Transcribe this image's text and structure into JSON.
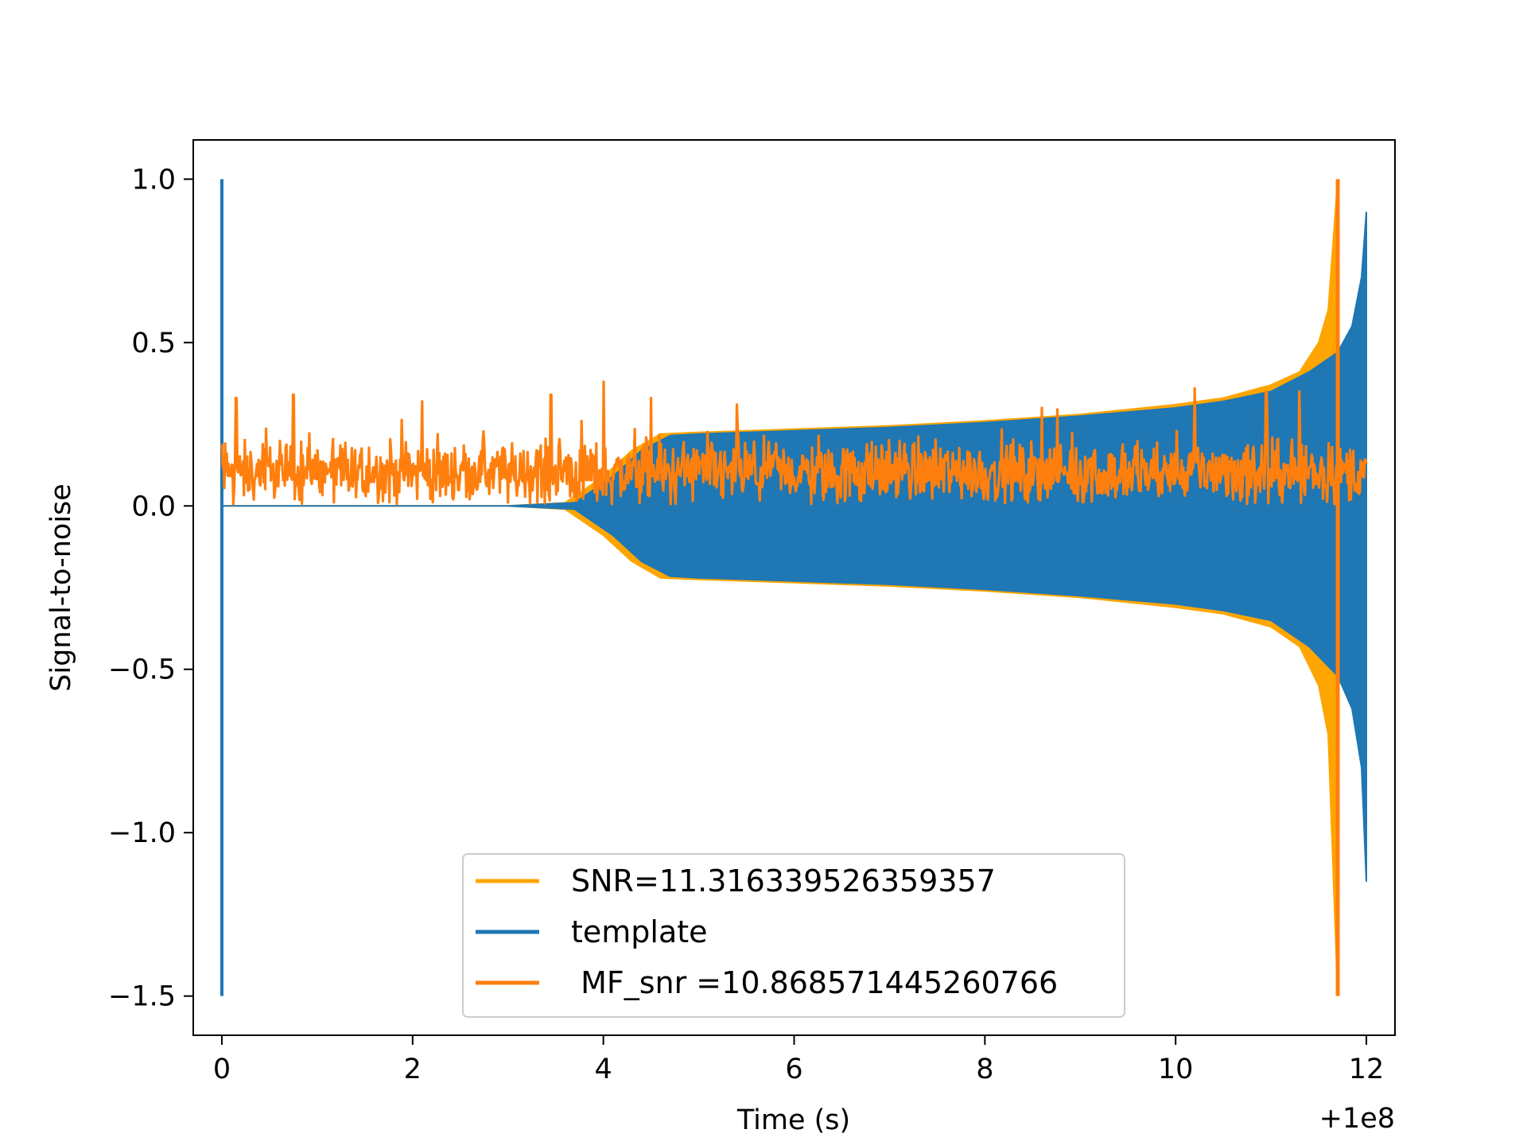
{
  "chart_data": {
    "type": "line",
    "title": "",
    "xlabel": "Time (s)",
    "ylabel": "Signal-to-noise",
    "x_offset_label": "+1e8",
    "xlim": [
      -0.3,
      12.3
    ],
    "ylim": [
      -1.62,
      1.12
    ],
    "x_ticks": [
      0,
      2,
      4,
      6,
      8,
      10,
      12
    ],
    "x_tick_labels": [
      "0",
      "2",
      "4",
      "6",
      "8",
      "10",
      "12"
    ],
    "y_ticks": [
      1.0,
      0.5,
      0.0,
      -0.5,
      -1.0,
      -1.5
    ],
    "y_tick_labels": [
      "1.0",
      "0.5",
      "0.0",
      "−0.5",
      "−1.0",
      "−1.5"
    ],
    "grid": false,
    "legend_position": "lower-center",
    "series": [
      {
        "name": "SNR=11.316339526359357",
        "color": "#ffa500",
        "kind": "envelope",
        "x": [
          0,
          3.0,
          3.6,
          4.0,
          4.3,
          4.6,
          5.0,
          6.0,
          7.0,
          8.0,
          9.0,
          10.0,
          10.5,
          11.0,
          11.3,
          11.5,
          11.6,
          11.7
        ],
        "upper": [
          0,
          0,
          0.01,
          0.09,
          0.17,
          0.22,
          0.225,
          0.235,
          0.245,
          0.26,
          0.28,
          0.31,
          0.33,
          0.37,
          0.41,
          0.5,
          0.6,
          1.0
        ],
        "lower": [
          0,
          0,
          -0.01,
          -0.09,
          -0.17,
          -0.22,
          -0.225,
          -0.235,
          -0.245,
          -0.26,
          -0.28,
          -0.31,
          -0.33,
          -0.37,
          -0.43,
          -0.55,
          -0.7,
          -1.5
        ]
      },
      {
        "name": "template",
        "color": "#1f77b4",
        "kind": "envelope",
        "x": [
          0,
          3.0,
          3.7,
          4.1,
          4.4,
          4.7,
          5.0,
          6.0,
          7.0,
          8.0,
          9.0,
          10.0,
          10.5,
          11.0,
          11.4,
          11.7,
          11.85,
          11.95,
          12.0
        ],
        "upper": [
          0,
          0,
          0.01,
          0.09,
          0.17,
          0.215,
          0.22,
          0.23,
          0.24,
          0.255,
          0.275,
          0.3,
          0.32,
          0.35,
          0.41,
          0.47,
          0.55,
          0.7,
          0.9
        ],
        "lower": [
          0,
          0,
          -0.01,
          -0.09,
          -0.17,
          -0.215,
          -0.22,
          -0.23,
          -0.24,
          -0.255,
          -0.275,
          -0.3,
          -0.32,
          -0.35,
          -0.43,
          -0.52,
          -0.62,
          -0.8,
          -1.15
        ],
        "spike_at": 0,
        "spike_range": [
          -1.5,
          1.0
        ]
      },
      {
        "name": " MF_snr =10.868571445260766",
        "color": "#ff7f0e",
        "kind": "noise",
        "x_range": [
          0,
          12.0
        ],
        "baseline": 0.1,
        "spread": 0.07,
        "peaks_x": [
          0.15,
          0.75,
          2.1,
          3.45,
          4.0,
          4.5,
          5.4,
          8.6,
          10.2,
          10.95,
          11.3
        ],
        "peaks_y": [
          0.33,
          0.34,
          0.32,
          0.34,
          0.38,
          0.33,
          0.31,
          0.3,
          0.36,
          0.35,
          0.35
        ],
        "event_x": 11.7,
        "event_range": [
          -1.5,
          1.0
        ]
      }
    ]
  }
}
